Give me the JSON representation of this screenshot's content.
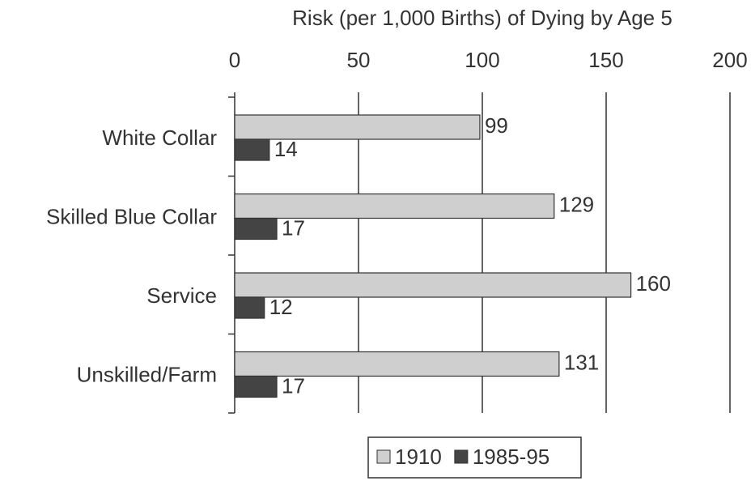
{
  "chart_data": {
    "type": "bar",
    "orientation": "horizontal",
    "xlabel": "Risk (per 1,000 Births) of Dying by Age 5",
    "categories": [
      "White Collar",
      "Skilled Blue Collar",
      "Service",
      "Unskilled/Farm"
    ],
    "series": [
      {
        "name": "1910",
        "color": "#cfcfcf",
        "values": [
          99,
          129,
          160,
          131
        ]
      },
      {
        "name": "1985-95",
        "color": "#444444",
        "values": [
          14,
          17,
          12,
          17
        ]
      }
    ],
    "xlim": [
      0,
      200
    ],
    "xticks": [
      0,
      50,
      100,
      150,
      200
    ],
    "grid": true,
    "legend": "bottom"
  }
}
